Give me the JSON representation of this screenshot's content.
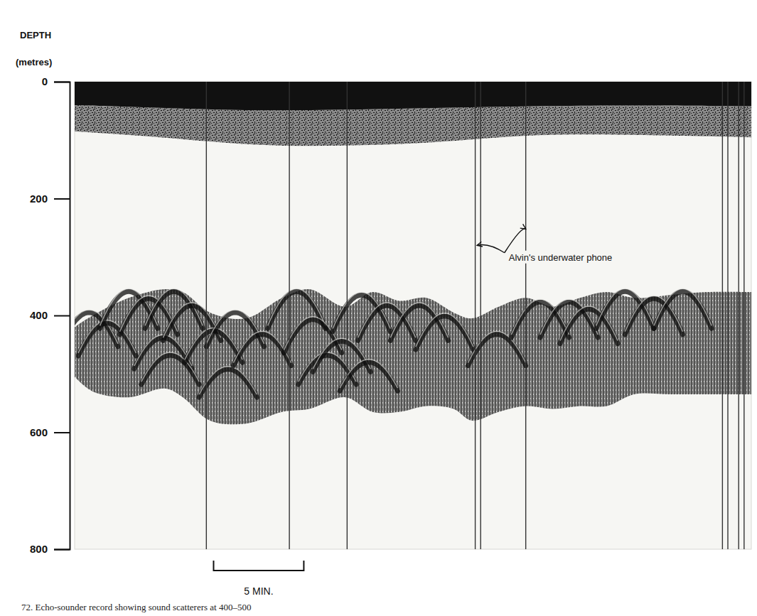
{
  "chart_data": {
    "type": "echogram",
    "title": "72. Echo-sounder record showing sound scatterers at 400–500",
    "ylabel": [
      "DEPTH",
      "(metres)"
    ],
    "ylim": [
      0,
      800
    ],
    "yticks": [
      0,
      200,
      400,
      600,
      800
    ],
    "xlim": [
      0,
      37.5
    ],
    "tick_labels": "y",
    "surface_layer": {
      "x": [
        0,
        5,
        10,
        15,
        20,
        25,
        30,
        37.5
      ],
      "dense_bottom": [
        40,
        45,
        50,
        48,
        45,
        42,
        40,
        42
      ],
      "bottom": [
        85,
        95,
        110,
        110,
        105,
        90,
        90,
        95
      ]
    },
    "scattering_layer": {
      "x": [
        0,
        1,
        3,
        5,
        6,
        7.5,
        9.5,
        11.5,
        13,
        15,
        16.5,
        18,
        19.5,
        21,
        22,
        23.5,
        25,
        26.5,
        28,
        29.5,
        31,
        33,
        35,
        37.5
      ],
      "top": [
        420,
        400,
        370,
        355,
        360,
        395,
        405,
        370,
        355,
        385,
        360,
        375,
        370,
        395,
        405,
        385,
        370,
        385,
        370,
        360,
        370,
        365,
        360,
        360
      ],
      "bottom": [
        505,
        530,
        540,
        525,
        540,
        580,
        585,
        565,
        560,
        540,
        565,
        565,
        555,
        560,
        580,
        565,
        555,
        560,
        555,
        555,
        535,
        535,
        535,
        535
      ]
    },
    "echoes": {
      "x": [
        0.8,
        1.8,
        3.0,
        4.1,
        4.9,
        5.3,
        5.5,
        6.5,
        7.7,
        8.5,
        8.9,
        10.4,
        12.3,
        13.2,
        14.0,
        14.8,
        15.9,
        16.3,
        17.3,
        19.1,
        20.5,
        23.4,
        25.8,
        27.4,
        28.5,
        30.5,
        32.1,
        33.7
      ],
      "depth": [
        395,
        413,
        359,
        371,
        438,
        468,
        359,
        383,
        426,
        492,
        395,
        432,
        359,
        407,
        468,
        444,
        365,
        480,
        383,
        383,
        401,
        432,
        377,
        377,
        389,
        359,
        371,
        359
      ]
    },
    "time_marks": {
      "x": [
        7.3,
        11.9,
        15.1,
        22.2,
        22.5,
        25.0,
        35.9,
        36.2,
        36.8,
        37.1
      ]
    },
    "scale_bar": {
      "x": 7.7,
      "value": 5,
      "label": "5 MIN."
    },
    "annotations": [
      {
        "text": "Alvin's underwater phone",
        "x": 23.9,
        "y": 300,
        "arrows": [
          {
            "x": 22.3,
            "y": 280
          },
          {
            "x": 25.0,
            "y": 252
          }
        ]
      }
    ]
  }
}
